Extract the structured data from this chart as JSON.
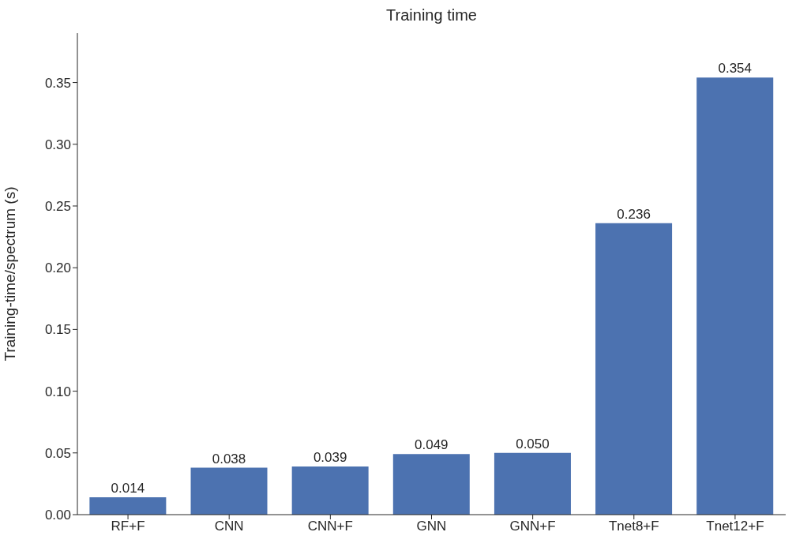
{
  "chart_data": {
    "type": "bar",
    "title": "Training time",
    "ylabel": "Training-time/spectrum (s)",
    "categories": [
      "RF+F",
      "CNN",
      "CNN+F",
      "GNN",
      "GNN+F",
      "Tnet8+F",
      "Tnet12+F"
    ],
    "values": [
      0.014,
      0.038,
      0.039,
      0.049,
      0.05,
      0.236,
      0.354
    ],
    "value_labels": [
      "0.014",
      "0.038",
      "0.039",
      "0.049",
      "0.050",
      "0.236",
      "0.354"
    ],
    "color": "#4c72b0",
    "ylim": [
      0,
      0.39
    ],
    "yticks": [
      {
        "value": 0,
        "label": "0.00"
      },
      {
        "value": 0.05,
        "label": "0.05"
      },
      {
        "value": 0.1,
        "label": "0.10"
      },
      {
        "value": 0.15,
        "label": "0.15"
      },
      {
        "value": 0.2,
        "label": "0.20"
      },
      {
        "value": 0.25,
        "label": "0.25"
      },
      {
        "value": 0.3,
        "label": "0.30"
      },
      {
        "value": 0.35,
        "label": "0.35"
      }
    ],
    "grid": false,
    "legend": false
  }
}
